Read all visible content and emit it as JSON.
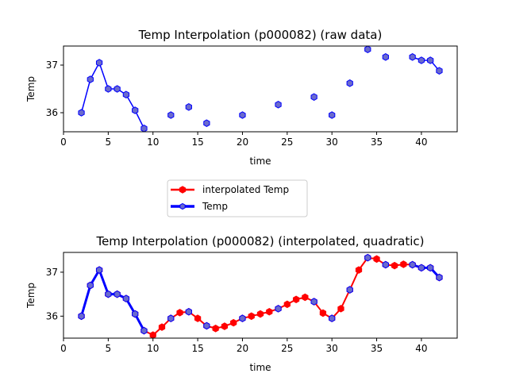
{
  "chart_data": [
    {
      "type": "line",
      "title": "Temp Interpolation (p000082) (raw data)",
      "xlabel": "time",
      "ylabel": "Temp",
      "xlim": [
        0,
        44
      ],
      "ylim": [
        35.6,
        37.4
      ],
      "xticks": [
        0,
        5,
        10,
        15,
        20,
        25,
        30,
        35,
        40
      ],
      "yticks": [
        36,
        37
      ],
      "grid": false,
      "series": [
        {
          "name": "Temp",
          "color": "#0000ff",
          "marker_fill": "#6a6acd",
          "marker": "hexagon",
          "x": [
            2,
            3,
            4,
            5,
            6,
            7,
            8,
            9,
            12,
            14,
            16,
            20,
            24,
            28,
            30,
            32,
            34,
            36,
            39,
            40,
            41,
            42
          ],
          "y": [
            36.0,
            36.7,
            37.05,
            36.5,
            36.5,
            36.38,
            36.05,
            35.67,
            35.95,
            36.12,
            35.78,
            35.95,
            36.17,
            36.33,
            35.95,
            36.62,
            37.33,
            37.17,
            37.17,
            37.1,
            37.1,
            36.88
          ],
          "connected_segments": [
            [
              2,
              9
            ],
            [
              39,
              42
            ]
          ]
        }
      ]
    },
    {
      "type": "line",
      "title": "Temp Interpolation (p000082) (interpolated, quadratic)",
      "xlabel": "time",
      "ylabel": "Temp",
      "xlim": [
        0,
        44
      ],
      "ylim": [
        35.5,
        37.45
      ],
      "xticks": [
        0,
        5,
        10,
        15,
        20,
        25,
        30,
        35,
        40
      ],
      "yticks": [
        36,
        37
      ],
      "grid": false,
      "legend": {
        "placement": "above-center",
        "entries": [
          "interpolated Temp",
          "Temp"
        ]
      },
      "series": [
        {
          "name": "interpolated Temp",
          "color": "#ff0000",
          "marker": "hexagon",
          "x": [
            2,
            3,
            4,
            5,
            6,
            7,
            8,
            9,
            10,
            11,
            12,
            13,
            14,
            15,
            16,
            17,
            18,
            19,
            20,
            21,
            22,
            23,
            24,
            25,
            26,
            27,
            28,
            29,
            30,
            31,
            32,
            33,
            34,
            35,
            36,
            37,
            38,
            39,
            40,
            41,
            42
          ],
          "y": [
            36.0,
            36.7,
            37.05,
            36.5,
            36.5,
            36.4,
            36.05,
            35.67,
            35.57,
            35.75,
            35.95,
            36.08,
            36.1,
            35.95,
            35.78,
            35.72,
            35.77,
            35.85,
            35.95,
            36.0,
            36.05,
            36.1,
            36.17,
            36.27,
            36.38,
            36.43,
            36.33,
            36.07,
            35.95,
            36.17,
            36.6,
            37.05,
            37.33,
            37.3,
            37.17,
            37.15,
            37.18,
            37.17,
            37.1,
            37.1,
            36.88
          ]
        },
        {
          "name": "Temp",
          "color": "#0000ff",
          "marker_fill": "#6a6acd",
          "marker": "hexagon",
          "x": [
            2,
            3,
            4,
            5,
            6,
            7,
            8,
            9,
            12,
            14,
            16,
            20,
            24,
            28,
            30,
            32,
            34,
            36,
            39,
            40,
            41,
            42
          ],
          "y": [
            36.0,
            36.7,
            37.05,
            36.5,
            36.5,
            36.4,
            36.05,
            35.67,
            35.95,
            36.1,
            35.78,
            35.95,
            36.17,
            36.33,
            35.95,
            36.6,
            37.33,
            37.17,
            37.17,
            37.1,
            37.1,
            36.88
          ],
          "connected_segments": [
            [
              2,
              9
            ],
            [
              39,
              42
            ]
          ]
        }
      ]
    }
  ]
}
